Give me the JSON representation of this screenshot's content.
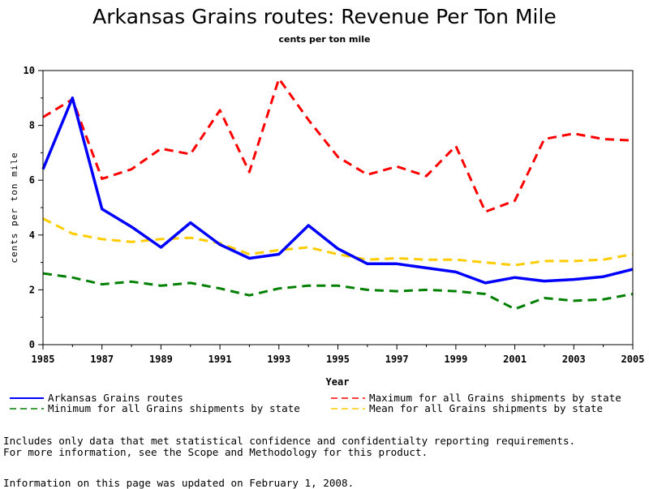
{
  "chart_data": {
    "type": "line",
    "title": "Arkansas Grains routes: Revenue Per Ton Mile",
    "subtitle": "cents per ton mile",
    "xlabel": "Year",
    "ylabel": "cents per ton mile",
    "xlim": [
      1985,
      2005
    ],
    "ylim": [
      0,
      10
    ],
    "x_ticks": [
      "1985",
      "1987",
      "1989",
      "1991",
      "1993",
      "1995",
      "1997",
      "1999",
      "2001",
      "2003",
      "2005"
    ],
    "y_ticks": [
      "0",
      "2",
      "4",
      "6",
      "8",
      "10"
    ],
    "x": [
      1985,
      1986,
      1987,
      1988,
      1989,
      1990,
      1991,
      1992,
      1993,
      1994,
      1995,
      1996,
      1997,
      1998,
      1999,
      2000,
      2001,
      2002,
      2003,
      2004,
      2005
    ],
    "series": [
      {
        "name": "Arkansas Grains routes",
        "color": "#0000ff",
        "style": "solid",
        "values": [
          6.4,
          9.0,
          4.95,
          4.3,
          3.55,
          4.45,
          3.65,
          3.15,
          3.3,
          4.35,
          3.5,
          2.95,
          2.95,
          2.8,
          2.65,
          2.25,
          2.45,
          2.32,
          2.38,
          2.48,
          2.75
        ]
      },
      {
        "name": "Maximum for all Grains shipments by state",
        "color": "#ff0000",
        "style": "dashed",
        "values": [
          8.3,
          8.95,
          6.05,
          6.4,
          7.15,
          6.95,
          8.55,
          6.3,
          9.7,
          8.2,
          6.85,
          6.2,
          6.5,
          6.15,
          7.25,
          4.85,
          5.25,
          7.5,
          7.7,
          7.5,
          7.45
        ]
      },
      {
        "name": "Minimum for all Grains shipments by state",
        "color": "#008000",
        "style": "dashed",
        "values": [
          2.6,
          2.45,
          2.2,
          2.3,
          2.15,
          2.25,
          2.05,
          1.8,
          2.05,
          2.15,
          2.15,
          2.0,
          1.95,
          2.0,
          1.95,
          1.85,
          1.3,
          1.7,
          1.6,
          1.65,
          1.85
        ]
      },
      {
        "name": "Mean for all Grains shipments by state",
        "color": "#ffcc00",
        "style": "dashed",
        "values": [
          4.6,
          4.05,
          3.85,
          3.75,
          3.85,
          3.9,
          3.7,
          3.3,
          3.45,
          3.55,
          3.3,
          3.1,
          3.15,
          3.1,
          3.1,
          3.0,
          2.9,
          3.05,
          3.05,
          3.1,
          3.3
        ]
      }
    ],
    "legend_position": "bottom"
  },
  "footnotes": {
    "line1": "Includes only data that met statistical confidence and confidentialty reporting requirements.",
    "line2": "For more information, see the Scope and Methodology for this product.",
    "line3": "Information on this page was updated on February 1, 2008."
  }
}
